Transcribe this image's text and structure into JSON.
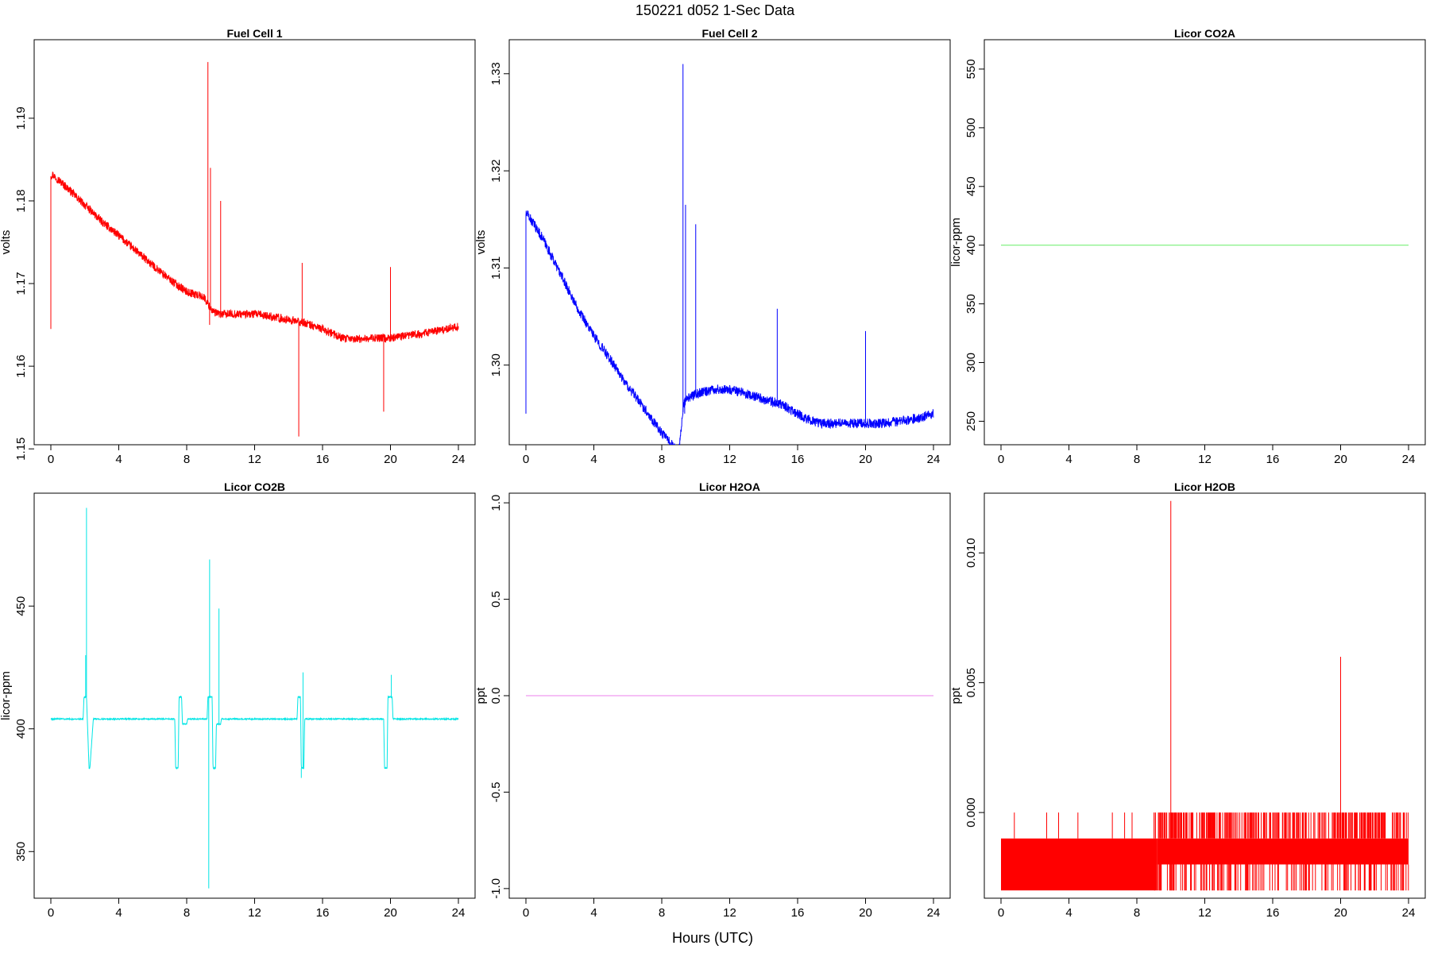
{
  "figure": {
    "title": "150221    d052    1-Sec Data",
    "xlabel": "Hours (UTC)"
  },
  "chart_data": [
    {
      "type": "line",
      "title": "Fuel Cell 1",
      "ylabel": "volts",
      "color": "#ff0000",
      "xlim": [
        0,
        24
      ],
      "ylim": [
        1.1505,
        1.1995
      ],
      "xticks": [
        0,
        4,
        8,
        12,
        16,
        20,
        24
      ],
      "yticks": [
        "1.15",
        "1.16",
        "1.17",
        "1.18",
        "1.19"
      ],
      "series": [
        {
          "x": [
            0,
            0.1,
            1,
            2,
            3,
            4,
            5,
            6,
            7,
            8,
            9,
            9.25,
            9.6,
            10,
            11,
            12,
            13,
            14,
            15,
            16,
            16.5,
            17.3,
            18,
            19,
            20,
            21,
            22,
            23,
            24
          ],
          "y": [
            1.183,
            1.1832,
            1.1815,
            1.1795,
            1.1775,
            1.1758,
            1.174,
            1.1722,
            1.1705,
            1.169,
            1.1684,
            1.1675,
            1.1665,
            1.1663,
            1.1663,
            1.1663,
            1.166,
            1.1656,
            1.1652,
            1.1645,
            1.164,
            1.1633,
            1.1633,
            1.1634,
            1.1634,
            1.1637,
            1.164,
            1.1644,
            1.1648
          ],
          "noise": 0.0005
        }
      ],
      "spikes": [
        [
          0,
          1.1645
        ],
        [
          9.25,
          1.1968
        ],
        [
          9.35,
          1.165
        ],
        [
          9.4,
          1.184
        ],
        [
          10.0,
          1.18
        ],
        [
          14.6,
          1.1515
        ],
        [
          14.8,
          1.1725
        ],
        [
          19.6,
          1.1545
        ],
        [
          20.0,
          1.172
        ]
      ]
    },
    {
      "type": "line",
      "title": "Fuel Cell 2",
      "ylabel": "volts",
      "color": "#0000ff",
      "xlim": [
        0,
        24
      ],
      "ylim": [
        1.2918,
        1.3335
      ],
      "xticks": [
        0,
        4,
        8,
        12,
        16,
        20,
        24
      ],
      "yticks": [
        "1.30",
        "1.31",
        "1.32",
        "1.33"
      ],
      "series": [
        {
          "x": [
            0,
            0.1,
            1,
            2,
            3,
            4,
            5,
            6,
            7,
            8,
            9,
            9.3,
            9.5,
            10,
            11,
            12,
            13,
            14,
            15,
            16,
            16.5,
            17.3,
            18,
            19,
            20,
            21,
            22,
            23,
            24
          ],
          "y": [
            1.3155,
            1.3155,
            1.313,
            1.3095,
            1.306,
            1.303,
            1.3005,
            1.2978,
            1.2955,
            1.293,
            1.291,
            1.296,
            1.2965,
            1.297,
            1.2975,
            1.2975,
            1.297,
            1.2965,
            1.296,
            1.295,
            1.2945,
            1.294,
            1.294,
            1.294,
            1.294,
            1.294,
            1.2942,
            1.2945,
            1.295
          ],
          "noise": 0.0005
        }
      ],
      "spikes": [
        [
          0,
          1.295
        ],
        [
          9.25,
          1.331
        ],
        [
          9.35,
          1.295
        ],
        [
          9.4,
          1.3165
        ],
        [
          10.0,
          1.3145
        ],
        [
          14.8,
          1.3058
        ],
        [
          20.0,
          1.3035
        ]
      ]
    },
    {
      "type": "line",
      "title": "Licor CO2A",
      "ylabel": "licor-ppm",
      "color": "#66ee66",
      "xlim": [
        0,
        24
      ],
      "ylim": [
        230,
        575
      ],
      "xticks": [
        0,
        4,
        8,
        12,
        16,
        20,
        24
      ],
      "yticks": [
        "250",
        "300",
        "350",
        "400",
        "450",
        "500",
        "550"
      ],
      "series": [
        {
          "x": [
            0,
            24
          ],
          "y": [
            400,
            400
          ],
          "noise": 0
        }
      ],
      "spikes": []
    },
    {
      "type": "line",
      "title": "Licor CO2B",
      "ylabel": "licor-ppm",
      "color": "#00e5e5",
      "xlim": [
        0,
        24
      ],
      "ylim": [
        331,
        496
      ],
      "xticks": [
        0,
        4,
        8,
        12,
        16,
        20,
        24
      ],
      "yticks": [
        "350",
        "400",
        "450"
      ],
      "series": [
        {
          "x": [
            0,
            1.9,
            1.95,
            2.1,
            2.25,
            2.3,
            2.5,
            2.55,
            7.3,
            7.35,
            7.5,
            7.55,
            7.7,
            7.75,
            8.0,
            8.05,
            9.2,
            9.25,
            9.5,
            9.55,
            9.7,
            9.75,
            10.0,
            10.05,
            14.5,
            14.55,
            14.7,
            14.75,
            14.9,
            14.95,
            19.6,
            19.65,
            19.8,
            19.85,
            20.1,
            20.15,
            24
          ],
          "y": [
            404,
            404,
            413,
            413,
            384,
            384,
            404,
            404,
            404,
            384,
            384,
            413,
            413,
            402,
            402,
            404,
            404,
            413,
            413,
            384,
            384,
            402,
            402,
            404,
            404,
            413,
            413,
            384,
            384,
            404,
            404,
            384,
            384,
            413,
            413,
            404,
            404
          ],
          "noise": 0.25
        }
      ],
      "spikes": [
        [
          2.1,
          490
        ],
        [
          2.05,
          430
        ],
        [
          9.3,
          335
        ],
        [
          9.35,
          469
        ],
        [
          9.9,
          449
        ],
        [
          14.75,
          380
        ],
        [
          14.85,
          423
        ],
        [
          20.05,
          422
        ]
      ]
    },
    {
      "type": "line",
      "title": "Licor H2OA",
      "ylabel": "ppt",
      "color": "#ee82ee",
      "xlim": [
        0,
        24
      ],
      "ylim": [
        -1.05,
        1.05
      ],
      "xticks": [
        0,
        4,
        8,
        12,
        16,
        20,
        24
      ],
      "yticks": [
        "-1.0",
        "-0.5",
        "0.0",
        "0.5",
        "1.0"
      ],
      "series": [
        {
          "x": [
            0,
            24
          ],
          "y": [
            0,
            0
          ],
          "noise": 0
        }
      ],
      "spikes": []
    },
    {
      "type": "area",
      "title": "Licor H2OB",
      "ylabel": "ppt",
      "color": "#ff0000",
      "xlim": [
        0,
        24
      ],
      "ylim": [
        -0.0033,
        0.0123
      ],
      "xticks": [
        0,
        4,
        8,
        12,
        16,
        20,
        24
      ],
      "yticks": [
        "0.000",
        "0.005",
        "0.010"
      ],
      "bands": [
        {
          "x": [
            0,
            9.2
          ],
          "y": [
            -0.003,
            -0.001
          ]
        },
        {
          "x": [
            9.2,
            24
          ],
          "y": [
            -0.002,
            -0.001
          ]
        }
      ],
      "flicker_up": {
        "x_range": [
          0,
          24
        ],
        "to": 0.0,
        "from": -0.001
      },
      "flicker_down": {
        "x_range": [
          0,
          24
        ],
        "to": -0.003,
        "from": -0.002
      },
      "spikes": [
        [
          10.0,
          0.012
        ],
        [
          20.0,
          0.006
        ],
        [
          21.8,
          -0.003
        ]
      ]
    }
  ]
}
